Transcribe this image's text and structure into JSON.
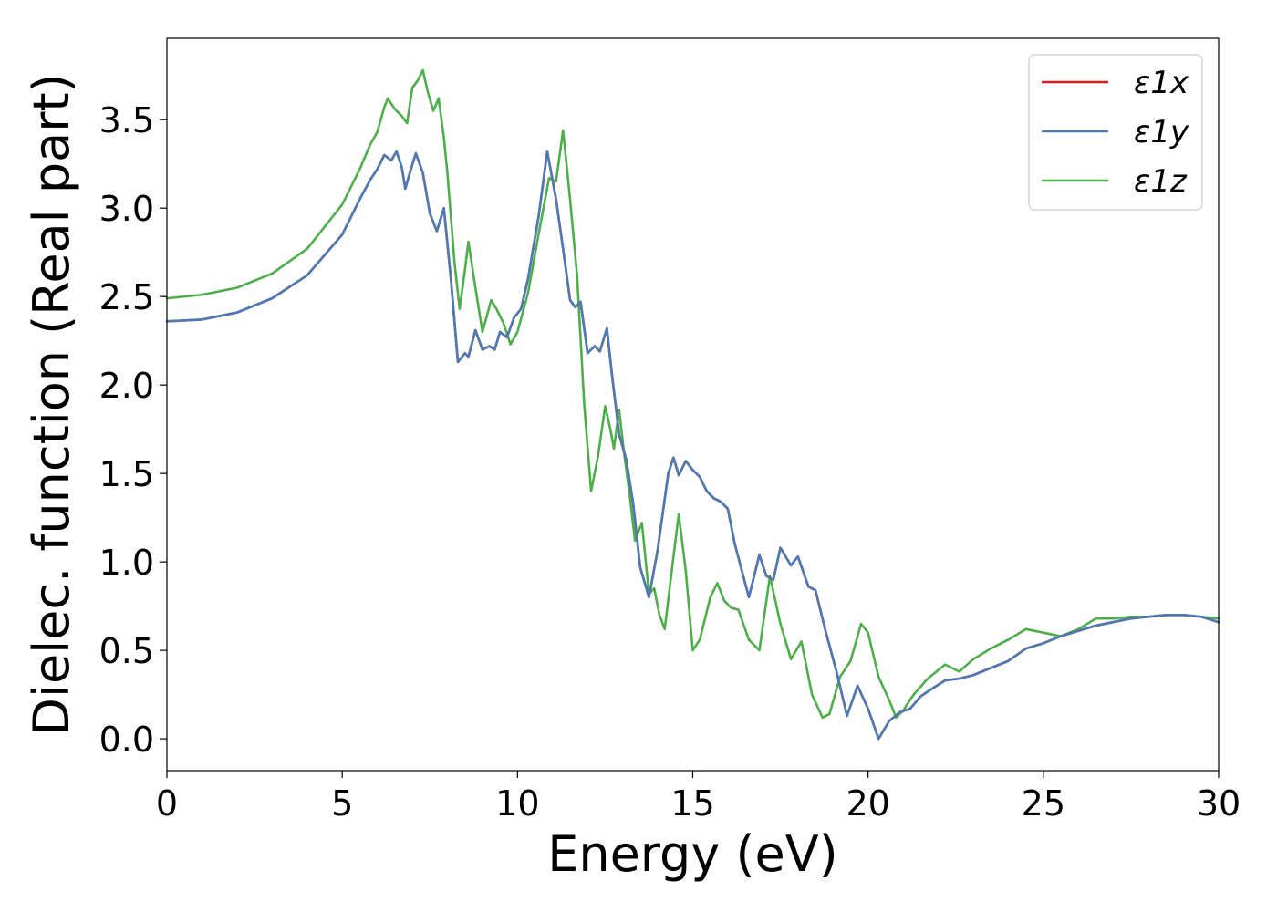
{
  "chart_data": {
    "type": "line",
    "title": "",
    "xlabel": "Energy (eV)",
    "ylabel": "Dielec. function (Real part)",
    "xlim": [
      0,
      30
    ],
    "ylim": [
      -0.18,
      3.96
    ],
    "xticks": [
      0,
      5,
      10,
      15,
      20,
      25,
      30
    ],
    "xtick_labels": [
      "0",
      "5",
      "10",
      "15",
      "20",
      "25",
      "30"
    ],
    "yticks": [
      0.0,
      0.5,
      1.0,
      1.5,
      2.0,
      2.5,
      3.0,
      3.5
    ],
    "ytick_labels": [
      "0.0",
      "0.5",
      "1.0",
      "1.5",
      "2.0",
      "2.5",
      "3.0",
      "3.5"
    ],
    "grid": false,
    "legend_position": "top-right",
    "series": [
      {
        "name": "ε1x",
        "color": "#e41a1c",
        "points": [
          [
            0,
            2.36
          ],
          [
            1,
            2.37
          ],
          [
            2,
            2.41
          ],
          [
            3,
            2.49
          ],
          [
            4,
            2.62
          ],
          [
            5,
            2.85
          ],
          [
            5.5,
            3.05
          ],
          [
            5.8,
            3.16
          ],
          [
            6.0,
            3.22
          ],
          [
            6.2,
            3.3
          ],
          [
            6.4,
            3.27
          ],
          [
            6.55,
            3.32
          ],
          [
            6.7,
            3.23
          ],
          [
            6.8,
            3.11
          ],
          [
            6.9,
            3.18
          ],
          [
            7.1,
            3.31
          ],
          [
            7.3,
            3.2
          ],
          [
            7.5,
            2.97
          ],
          [
            7.7,
            2.87
          ],
          [
            7.9,
            3.0
          ],
          [
            8.1,
            2.6
          ],
          [
            8.3,
            2.13
          ],
          [
            8.5,
            2.18
          ],
          [
            8.6,
            2.16
          ],
          [
            8.8,
            2.31
          ],
          [
            9.0,
            2.2
          ],
          [
            9.2,
            2.22
          ],
          [
            9.35,
            2.2
          ],
          [
            9.5,
            2.3
          ],
          [
            9.7,
            2.27
          ],
          [
            9.9,
            2.38
          ],
          [
            10.1,
            2.43
          ],
          [
            10.3,
            2.6
          ],
          [
            10.6,
            2.95
          ],
          [
            10.85,
            3.32
          ],
          [
            11.1,
            3.05
          ],
          [
            11.3,
            2.77
          ],
          [
            11.5,
            2.48
          ],
          [
            11.65,
            2.44
          ],
          [
            11.8,
            2.47
          ],
          [
            12.0,
            2.18
          ],
          [
            12.2,
            2.22
          ],
          [
            12.35,
            2.19
          ],
          [
            12.55,
            2.32
          ],
          [
            12.7,
            2.05
          ],
          [
            12.9,
            1.72
          ],
          [
            13.1,
            1.58
          ],
          [
            13.3,
            1.33
          ],
          [
            13.5,
            0.97
          ],
          [
            13.75,
            0.8
          ],
          [
            14.0,
            1.07
          ],
          [
            14.3,
            1.5
          ],
          [
            14.45,
            1.59
          ],
          [
            14.6,
            1.49
          ],
          [
            14.8,
            1.57
          ],
          [
            15.0,
            1.52
          ],
          [
            15.2,
            1.48
          ],
          [
            15.4,
            1.4
          ],
          [
            15.6,
            1.36
          ],
          [
            15.8,
            1.34
          ],
          [
            16.0,
            1.3
          ],
          [
            16.2,
            1.1
          ],
          [
            16.4,
            0.95
          ],
          [
            16.6,
            0.8
          ],
          [
            16.9,
            1.04
          ],
          [
            17.1,
            0.92
          ],
          [
            17.3,
            0.9
          ],
          [
            17.5,
            1.08
          ],
          [
            17.8,
            0.98
          ],
          [
            18.0,
            1.03
          ],
          [
            18.3,
            0.86
          ],
          [
            18.5,
            0.84
          ],
          [
            18.8,
            0.6
          ],
          [
            19.1,
            0.38
          ],
          [
            19.4,
            0.13
          ],
          [
            19.7,
            0.3
          ],
          [
            20.0,
            0.17
          ],
          [
            20.3,
            0.0
          ],
          [
            20.6,
            0.1
          ],
          [
            20.9,
            0.15
          ],
          [
            21.2,
            0.17
          ],
          [
            21.5,
            0.24
          ],
          [
            21.8,
            0.28
          ],
          [
            22.2,
            0.33
          ],
          [
            22.6,
            0.34
          ],
          [
            23.0,
            0.36
          ],
          [
            23.5,
            0.4
          ],
          [
            24.0,
            0.44
          ],
          [
            24.5,
            0.51
          ],
          [
            25.0,
            0.54
          ],
          [
            25.5,
            0.58
          ],
          [
            26.0,
            0.61
          ],
          [
            26.5,
            0.64
          ],
          [
            27.0,
            0.66
          ],
          [
            27.5,
            0.68
          ],
          [
            28.0,
            0.69
          ],
          [
            28.5,
            0.7
          ],
          [
            29.0,
            0.7
          ],
          [
            29.5,
            0.69
          ],
          [
            30.0,
            0.66
          ]
        ]
      },
      {
        "name": "ε1y",
        "color": "#4a7bb5",
        "points": [
          [
            0,
            2.36
          ],
          [
            1,
            2.37
          ],
          [
            2,
            2.41
          ],
          [
            3,
            2.49
          ],
          [
            4,
            2.62
          ],
          [
            5,
            2.85
          ],
          [
            5.5,
            3.05
          ],
          [
            5.8,
            3.16
          ],
          [
            6.0,
            3.22
          ],
          [
            6.2,
            3.3
          ],
          [
            6.4,
            3.27
          ],
          [
            6.55,
            3.32
          ],
          [
            6.7,
            3.23
          ],
          [
            6.8,
            3.11
          ],
          [
            6.9,
            3.18
          ],
          [
            7.1,
            3.31
          ],
          [
            7.3,
            3.2
          ],
          [
            7.5,
            2.97
          ],
          [
            7.7,
            2.87
          ],
          [
            7.9,
            3.0
          ],
          [
            8.1,
            2.6
          ],
          [
            8.3,
            2.13
          ],
          [
            8.5,
            2.18
          ],
          [
            8.6,
            2.16
          ],
          [
            8.8,
            2.31
          ],
          [
            9.0,
            2.2
          ],
          [
            9.2,
            2.22
          ],
          [
            9.35,
            2.2
          ],
          [
            9.5,
            2.3
          ],
          [
            9.7,
            2.27
          ],
          [
            9.9,
            2.38
          ],
          [
            10.1,
            2.43
          ],
          [
            10.3,
            2.6
          ],
          [
            10.6,
            2.95
          ],
          [
            10.85,
            3.32
          ],
          [
            11.1,
            3.05
          ],
          [
            11.3,
            2.77
          ],
          [
            11.5,
            2.48
          ],
          [
            11.65,
            2.44
          ],
          [
            11.8,
            2.47
          ],
          [
            12.0,
            2.18
          ],
          [
            12.2,
            2.22
          ],
          [
            12.35,
            2.19
          ],
          [
            12.55,
            2.32
          ],
          [
            12.7,
            2.05
          ],
          [
            12.9,
            1.72
          ],
          [
            13.1,
            1.58
          ],
          [
            13.3,
            1.33
          ],
          [
            13.5,
            0.97
          ],
          [
            13.75,
            0.8
          ],
          [
            14.0,
            1.07
          ],
          [
            14.3,
            1.5
          ],
          [
            14.45,
            1.59
          ],
          [
            14.6,
            1.49
          ],
          [
            14.8,
            1.57
          ],
          [
            15.0,
            1.52
          ],
          [
            15.2,
            1.48
          ],
          [
            15.4,
            1.4
          ],
          [
            15.6,
            1.36
          ],
          [
            15.8,
            1.34
          ],
          [
            16.0,
            1.3
          ],
          [
            16.2,
            1.1
          ],
          [
            16.4,
            0.95
          ],
          [
            16.6,
            0.8
          ],
          [
            16.9,
            1.04
          ],
          [
            17.1,
            0.92
          ],
          [
            17.3,
            0.9
          ],
          [
            17.5,
            1.08
          ],
          [
            17.8,
            0.98
          ],
          [
            18.0,
            1.03
          ],
          [
            18.3,
            0.86
          ],
          [
            18.5,
            0.84
          ],
          [
            18.8,
            0.6
          ],
          [
            19.1,
            0.38
          ],
          [
            19.4,
            0.13
          ],
          [
            19.7,
            0.3
          ],
          [
            20.0,
            0.17
          ],
          [
            20.3,
            0.0
          ],
          [
            20.6,
            0.1
          ],
          [
            20.9,
            0.15
          ],
          [
            21.2,
            0.17
          ],
          [
            21.5,
            0.24
          ],
          [
            21.8,
            0.28
          ],
          [
            22.2,
            0.33
          ],
          [
            22.6,
            0.34
          ],
          [
            23.0,
            0.36
          ],
          [
            23.5,
            0.4
          ],
          [
            24.0,
            0.44
          ],
          [
            24.5,
            0.51
          ],
          [
            25.0,
            0.54
          ],
          [
            25.5,
            0.58
          ],
          [
            26.0,
            0.61
          ],
          [
            26.5,
            0.64
          ],
          [
            27.0,
            0.66
          ],
          [
            27.5,
            0.68
          ],
          [
            28.0,
            0.69
          ],
          [
            28.5,
            0.7
          ],
          [
            29.0,
            0.7
          ],
          [
            29.5,
            0.69
          ],
          [
            30.0,
            0.66
          ]
        ]
      },
      {
        "name": "ε1z",
        "color": "#4daf4a",
        "points": [
          [
            0,
            2.49
          ],
          [
            1,
            2.51
          ],
          [
            2,
            2.55
          ],
          [
            3,
            2.63
          ],
          [
            4,
            2.77
          ],
          [
            5,
            3.02
          ],
          [
            5.5,
            3.22
          ],
          [
            5.8,
            3.36
          ],
          [
            6.0,
            3.43
          ],
          [
            6.2,
            3.57
          ],
          [
            6.3,
            3.62
          ],
          [
            6.5,
            3.56
          ],
          [
            6.7,
            3.52
          ],
          [
            6.85,
            3.48
          ],
          [
            7.0,
            3.68
          ],
          [
            7.15,
            3.72
          ],
          [
            7.3,
            3.78
          ],
          [
            7.45,
            3.65
          ],
          [
            7.6,
            3.55
          ],
          [
            7.75,
            3.62
          ],
          [
            7.9,
            3.4
          ],
          [
            8.0,
            3.2
          ],
          [
            8.2,
            2.7
          ],
          [
            8.35,
            2.43
          ],
          [
            8.5,
            2.65
          ],
          [
            8.6,
            2.81
          ],
          [
            8.8,
            2.55
          ],
          [
            9.0,
            2.3
          ],
          [
            9.25,
            2.48
          ],
          [
            9.4,
            2.43
          ],
          [
            9.6,
            2.35
          ],
          [
            9.8,
            2.23
          ],
          [
            10.0,
            2.3
          ],
          [
            10.3,
            2.52
          ],
          [
            10.6,
            2.85
          ],
          [
            10.9,
            3.17
          ],
          [
            11.1,
            3.15
          ],
          [
            11.3,
            3.44
          ],
          [
            11.5,
            3.05
          ],
          [
            11.7,
            2.62
          ],
          [
            11.9,
            1.9
          ],
          [
            12.1,
            1.4
          ],
          [
            12.3,
            1.6
          ],
          [
            12.5,
            1.88
          ],
          [
            12.65,
            1.75
          ],
          [
            12.75,
            1.64
          ],
          [
            12.9,
            1.86
          ],
          [
            13.05,
            1.6
          ],
          [
            13.2,
            1.38
          ],
          [
            13.35,
            1.12
          ],
          [
            13.55,
            1.22
          ],
          [
            13.75,
            0.82
          ],
          [
            13.9,
            0.85
          ],
          [
            14.05,
            0.7
          ],
          [
            14.2,
            0.62
          ],
          [
            14.4,
            0.95
          ],
          [
            14.6,
            1.27
          ],
          [
            14.8,
            0.95
          ],
          [
            15.0,
            0.5
          ],
          [
            15.2,
            0.56
          ],
          [
            15.5,
            0.8
          ],
          [
            15.7,
            0.88
          ],
          [
            15.9,
            0.78
          ],
          [
            16.1,
            0.74
          ],
          [
            16.3,
            0.73
          ],
          [
            16.6,
            0.56
          ],
          [
            16.9,
            0.5
          ],
          [
            17.2,
            0.92
          ],
          [
            17.5,
            0.65
          ],
          [
            17.8,
            0.45
          ],
          [
            18.1,
            0.55
          ],
          [
            18.4,
            0.25
          ],
          [
            18.7,
            0.12
          ],
          [
            18.9,
            0.14
          ],
          [
            19.2,
            0.35
          ],
          [
            19.5,
            0.44
          ],
          [
            19.8,
            0.65
          ],
          [
            20.0,
            0.6
          ],
          [
            20.3,
            0.35
          ],
          [
            20.6,
            0.22
          ],
          [
            20.8,
            0.12
          ],
          [
            21.0,
            0.16
          ],
          [
            21.3,
            0.25
          ],
          [
            21.7,
            0.34
          ],
          [
            22.2,
            0.42
          ],
          [
            22.6,
            0.38
          ],
          [
            23.0,
            0.45
          ],
          [
            23.5,
            0.51
          ],
          [
            24.0,
            0.56
          ],
          [
            24.5,
            0.62
          ],
          [
            25.0,
            0.6
          ],
          [
            25.5,
            0.58
          ],
          [
            26.0,
            0.62
          ],
          [
            26.5,
            0.68
          ],
          [
            27.0,
            0.68
          ],
          [
            27.5,
            0.69
          ],
          [
            28.0,
            0.69
          ],
          [
            28.5,
            0.7
          ],
          [
            29.0,
            0.7
          ],
          [
            29.5,
            0.69
          ],
          [
            30.0,
            0.68
          ]
        ]
      }
    ]
  },
  "legend": {
    "items": [
      {
        "label": "ε1x",
        "color": "#e41a1c"
      },
      {
        "label": "ε1y",
        "color": "#4a7bb5"
      },
      {
        "label": "ε1z",
        "color": "#4daf4a"
      }
    ]
  }
}
